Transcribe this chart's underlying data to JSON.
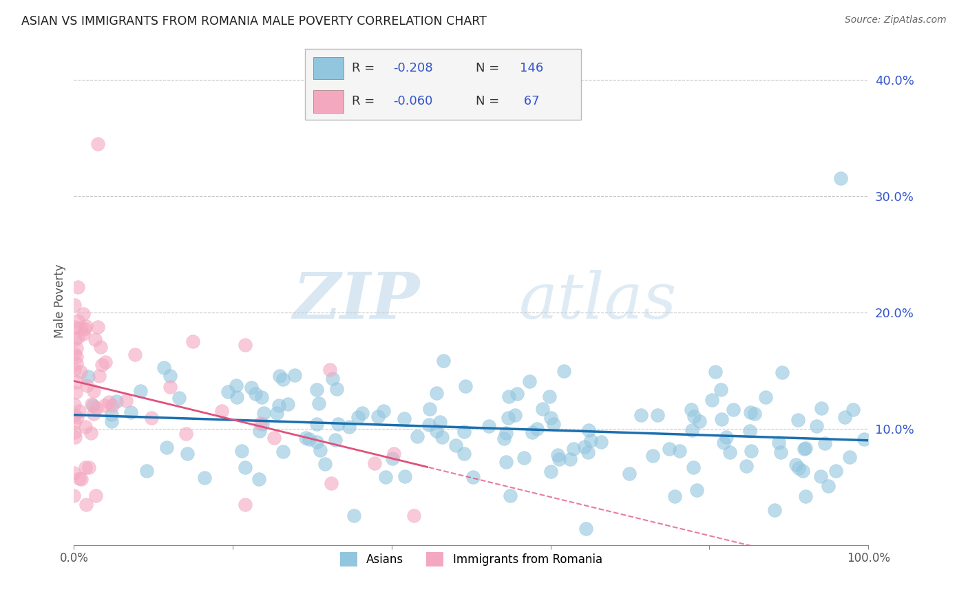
{
  "title": "ASIAN VS IMMIGRANTS FROM ROMANIA MALE POVERTY CORRELATION CHART",
  "source": "Source: ZipAtlas.com",
  "ylabel": "Male Poverty",
  "watermark_zip": "ZIP",
  "watermark_atlas": "atlas",
  "asian_R": -0.208,
  "asian_N": 146,
  "romania_R": -0.06,
  "romania_N": 67,
  "asian_color": "#92c5de",
  "romania_color": "#f4a8c0",
  "asian_line_color": "#1a6faf",
  "romania_line_color": "#e0507a",
  "grid_color": "#c8c8c8",
  "title_color": "#222222",
  "stat_color": "#3355cc",
  "right_axis_color": "#3355cc",
  "background_color": "#ffffff",
  "xlim": [
    0.0,
    1.0
  ],
  "ylim": [
    0.0,
    0.42
  ],
  "yticks": [
    0.0,
    0.1,
    0.2,
    0.3,
    0.4
  ],
  "ytick_labels": [
    "",
    "10.0%",
    "20.0%",
    "30.0%",
    "40.0%"
  ]
}
